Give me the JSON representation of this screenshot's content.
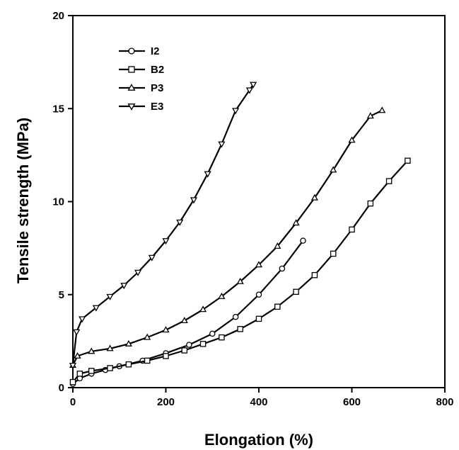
{
  "chart_data": {
    "type": "line",
    "xlabel": "Elongation (%)",
    "ylabel": "Tensile strength (MPa)",
    "xlim": [
      0,
      800
    ],
    "ylim": [
      0,
      20
    ],
    "xticks": [
      0,
      200,
      400,
      600,
      800
    ],
    "yticks": [
      0,
      5,
      10,
      15,
      20
    ],
    "legend_position": "top-left",
    "grid": false,
    "series": [
      {
        "name": "I2",
        "marker": "circle",
        "x": [
          0,
          15,
          40,
          70,
          100,
          150,
          200,
          250,
          300,
          350,
          400,
          450,
          495
        ],
        "y": [
          0.2,
          0.5,
          0.75,
          0.95,
          1.15,
          1.45,
          1.85,
          2.3,
          2.9,
          3.8,
          5.0,
          6.4,
          7.9
        ]
      },
      {
        "name": "B2",
        "marker": "square",
        "x": [
          0,
          15,
          40,
          80,
          120,
          160,
          200,
          240,
          280,
          320,
          360,
          400,
          440,
          480,
          520,
          560,
          600,
          640,
          680,
          720
        ],
        "y": [
          0.3,
          0.75,
          0.9,
          1.05,
          1.25,
          1.45,
          1.7,
          2.0,
          2.35,
          2.7,
          3.15,
          3.7,
          4.35,
          5.15,
          6.05,
          7.2,
          8.5,
          9.9,
          11.1,
          12.2
        ]
      },
      {
        "name": "P3",
        "marker": "triangle-up",
        "x": [
          0,
          10,
          40,
          80,
          120,
          160,
          200,
          240,
          280,
          320,
          360,
          400,
          440,
          480,
          520,
          560,
          600,
          640,
          665
        ],
        "y": [
          1.2,
          1.7,
          1.95,
          2.1,
          2.35,
          2.7,
          3.1,
          3.6,
          4.2,
          4.9,
          5.7,
          6.6,
          7.6,
          8.85,
          10.2,
          11.7,
          13.3,
          14.6,
          14.9
        ]
      },
      {
        "name": "E3",
        "marker": "triangle-down",
        "x": [
          0,
          8,
          20,
          50,
          80,
          110,
          140,
          170,
          200,
          230,
          260,
          290,
          320,
          350,
          380,
          388
        ],
        "y": [
          1.2,
          3.0,
          3.7,
          4.3,
          4.9,
          5.5,
          6.2,
          7.0,
          7.9,
          8.9,
          10.1,
          11.5,
          13.1,
          14.9,
          16.0,
          16.3
        ]
      }
    ]
  }
}
